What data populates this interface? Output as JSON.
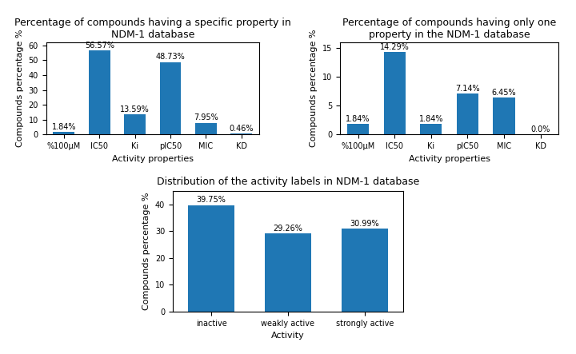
{
  "chart_data": [
    {
      "type": "bar",
      "title": "Percentage of compounds having a specific property in NDM-1 database",
      "categories": [
        "%100μM",
        "IC50",
        "Ki",
        "pIC50",
        "MIC",
        "KD"
      ],
      "values": [
        1.84,
        56.57,
        13.59,
        48.73,
        7.95,
        0.46
      ],
      "value_labels": [
        "1.84%",
        "56.57%",
        "13.59%",
        "48.73%",
        "7.95%",
        "0.46%"
      ],
      "data_labels": true,
      "xlabel": "Activity properties",
      "ylabel": "Compounds percentage %",
      "color": "#1f77b4",
      "ylim": [
        0,
        62
      ],
      "yticks": [
        0,
        10,
        20,
        30,
        40,
        50,
        60
      ]
    },
    {
      "type": "bar",
      "title": "Percentage of compounds having only one property in the NDM-1 database",
      "categories": [
        "%100μM",
        "IC50",
        "Ki",
        "pIC50",
        "MIC",
        "KD"
      ],
      "values": [
        1.84,
        14.29,
        1.84,
        7.14,
        6.45,
        0.0
      ],
      "value_labels": [
        "1.84%",
        "14.29%",
        "1.84%",
        "7.14%",
        "6.45%",
        "0.0%"
      ],
      "data_labels": true,
      "xlabel": "Activity properties",
      "ylabel": "Compounds percentage %",
      "color": "#1f77b4",
      "ylim": [
        0,
        16
      ],
      "yticks": [
        0,
        5,
        10,
        15
      ]
    },
    {
      "type": "bar",
      "title": "Distribution of the activity labels in NDM-1 database",
      "categories": [
        "inactive",
        "weakly active",
        "strongly active"
      ],
      "values": [
        39.75,
        29.26,
        30.99
      ],
      "value_labels": [
        "39.75%",
        "29.26%",
        "30.99%"
      ],
      "data_labels": true,
      "xlabel": "Activity",
      "ylabel": "Compounds percentage %",
      "color": "#1f77b4",
      "ylim": [
        0,
        45
      ],
      "yticks": [
        0,
        10,
        20,
        30,
        40
      ]
    }
  ]
}
